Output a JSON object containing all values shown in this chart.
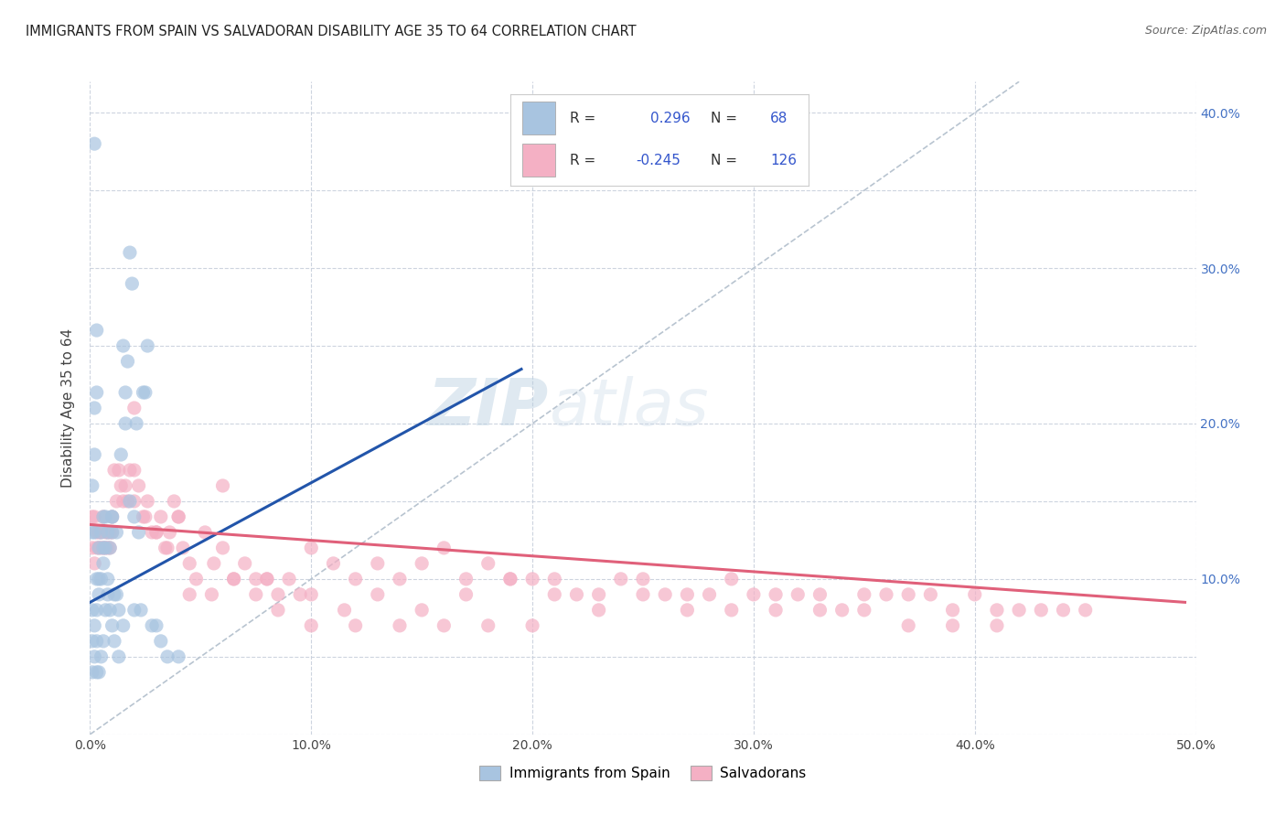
{
  "title": "IMMIGRANTS FROM SPAIN VS SALVADORAN DISABILITY AGE 35 TO 64 CORRELATION CHART",
  "source": "Source: ZipAtlas.com",
  "ylabel": "Disability Age 35 to 64",
  "xlabel": "",
  "xlim": [
    0.0,
    0.5
  ],
  "ylim": [
    0.0,
    0.42
  ],
  "xticks": [
    0.0,
    0.1,
    0.2,
    0.3,
    0.4,
    0.5
  ],
  "xticklabels": [
    "0.0%",
    "10.0%",
    "20.0%",
    "30.0%",
    "40.0%",
    "50.0%"
  ],
  "yticks_left": [
    0.0,
    0.05,
    0.1,
    0.15,
    0.2,
    0.25,
    0.3,
    0.35,
    0.4
  ],
  "yticks_right": [
    0.1,
    0.2,
    0.3,
    0.4
  ],
  "yticklabels_right": [
    "10.0%",
    "20.0%",
    "30.0%",
    "40.0%"
  ],
  "blue_color": "#a8c4e0",
  "pink_color": "#f4b0c4",
  "blue_line_color": "#2255aa",
  "pink_line_color": "#e0607a",
  "dashed_line_color": "#b8c4d0",
  "watermark_zip": "ZIP",
  "watermark_atlas": "atlas",
  "background_color": "#ffffff",
  "grid_color": "#c8d0dc",
  "title_fontsize": 11,
  "source_fontsize": 9,
  "blue_scatter_x": [
    0.001,
    0.001,
    0.001,
    0.002,
    0.002,
    0.002,
    0.002,
    0.003,
    0.003,
    0.003,
    0.003,
    0.004,
    0.004,
    0.004,
    0.005,
    0.005,
    0.005,
    0.006,
    0.006,
    0.006,
    0.007,
    0.007,
    0.007,
    0.008,
    0.008,
    0.009,
    0.009,
    0.01,
    0.01,
    0.01,
    0.011,
    0.011,
    0.012,
    0.012,
    0.013,
    0.013,
    0.014,
    0.015,
    0.015,
    0.016,
    0.016,
    0.017,
    0.018,
    0.018,
    0.019,
    0.02,
    0.02,
    0.021,
    0.022,
    0.023,
    0.024,
    0.025,
    0.026,
    0.028,
    0.03,
    0.032,
    0.035,
    0.04,
    0.001,
    0.001,
    0.002,
    0.002,
    0.003,
    0.003,
    0.004,
    0.006,
    0.008,
    0.01
  ],
  "blue_scatter_y": [
    0.08,
    0.06,
    0.04,
    0.38,
    0.13,
    0.07,
    0.05,
    0.1,
    0.08,
    0.06,
    0.04,
    0.12,
    0.09,
    0.04,
    0.13,
    0.1,
    0.05,
    0.14,
    0.11,
    0.06,
    0.14,
    0.12,
    0.08,
    0.13,
    0.09,
    0.12,
    0.08,
    0.14,
    0.13,
    0.07,
    0.09,
    0.06,
    0.13,
    0.09,
    0.08,
    0.05,
    0.18,
    0.25,
    0.07,
    0.22,
    0.2,
    0.24,
    0.31,
    0.15,
    0.29,
    0.14,
    0.08,
    0.2,
    0.13,
    0.08,
    0.22,
    0.22,
    0.25,
    0.07,
    0.07,
    0.06,
    0.05,
    0.05,
    0.16,
    0.13,
    0.21,
    0.18,
    0.26,
    0.22,
    0.1,
    0.12,
    0.1,
    0.14
  ],
  "pink_scatter_x": [
    0.001,
    0.001,
    0.002,
    0.002,
    0.003,
    0.003,
    0.004,
    0.004,
    0.005,
    0.005,
    0.006,
    0.006,
    0.007,
    0.007,
    0.008,
    0.008,
    0.009,
    0.009,
    0.01,
    0.01,
    0.011,
    0.012,
    0.013,
    0.014,
    0.015,
    0.016,
    0.017,
    0.018,
    0.02,
    0.022,
    0.024,
    0.026,
    0.028,
    0.03,
    0.032,
    0.034,
    0.036,
    0.038,
    0.04,
    0.042,
    0.045,
    0.048,
    0.052,
    0.056,
    0.06,
    0.065,
    0.07,
    0.075,
    0.08,
    0.085,
    0.09,
    0.095,
    0.1,
    0.11,
    0.12,
    0.13,
    0.14,
    0.15,
    0.16,
    0.17,
    0.18,
    0.19,
    0.2,
    0.21,
    0.22,
    0.23,
    0.24,
    0.25,
    0.26,
    0.27,
    0.28,
    0.29,
    0.3,
    0.31,
    0.32,
    0.33,
    0.34,
    0.35,
    0.36,
    0.37,
    0.38,
    0.39,
    0.4,
    0.41,
    0.42,
    0.43,
    0.44,
    0.45,
    0.02,
    0.025,
    0.03,
    0.035,
    0.045,
    0.055,
    0.065,
    0.075,
    0.085,
    0.1,
    0.115,
    0.13,
    0.15,
    0.17,
    0.19,
    0.21,
    0.23,
    0.25,
    0.27,
    0.29,
    0.31,
    0.33,
    0.35,
    0.37,
    0.39,
    0.41,
    0.02,
    0.04,
    0.06,
    0.08,
    0.1,
    0.12,
    0.14,
    0.16,
    0.18,
    0.2
  ],
  "pink_scatter_y": [
    0.14,
    0.12,
    0.14,
    0.11,
    0.13,
    0.12,
    0.13,
    0.12,
    0.13,
    0.12,
    0.14,
    0.12,
    0.13,
    0.12,
    0.13,
    0.12,
    0.12,
    0.13,
    0.14,
    0.13,
    0.17,
    0.15,
    0.17,
    0.16,
    0.15,
    0.16,
    0.15,
    0.17,
    0.15,
    0.16,
    0.14,
    0.15,
    0.13,
    0.13,
    0.14,
    0.12,
    0.13,
    0.15,
    0.14,
    0.12,
    0.11,
    0.1,
    0.13,
    0.11,
    0.12,
    0.1,
    0.11,
    0.1,
    0.1,
    0.09,
    0.1,
    0.09,
    0.12,
    0.11,
    0.1,
    0.11,
    0.1,
    0.11,
    0.12,
    0.1,
    0.11,
    0.1,
    0.1,
    0.1,
    0.09,
    0.09,
    0.1,
    0.1,
    0.09,
    0.09,
    0.09,
    0.1,
    0.09,
    0.09,
    0.09,
    0.09,
    0.08,
    0.09,
    0.09,
    0.09,
    0.09,
    0.08,
    0.09,
    0.08,
    0.08,
    0.08,
    0.08,
    0.08,
    0.17,
    0.14,
    0.13,
    0.12,
    0.09,
    0.09,
    0.1,
    0.09,
    0.08,
    0.09,
    0.08,
    0.09,
    0.08,
    0.09,
    0.1,
    0.09,
    0.08,
    0.09,
    0.08,
    0.08,
    0.08,
    0.08,
    0.08,
    0.07,
    0.07,
    0.07,
    0.21,
    0.14,
    0.16,
    0.1,
    0.07,
    0.07,
    0.07,
    0.07,
    0.07,
    0.07
  ],
  "blue_trend_x": [
    0.0,
    0.195
  ],
  "blue_trend_y": [
    0.085,
    0.235
  ],
  "pink_trend_x": [
    0.0,
    0.495
  ],
  "pink_trend_y": [
    0.135,
    0.085
  ],
  "diag_line_x": [
    0.0,
    0.42
  ],
  "diag_line_y": [
    0.0,
    0.42
  ]
}
